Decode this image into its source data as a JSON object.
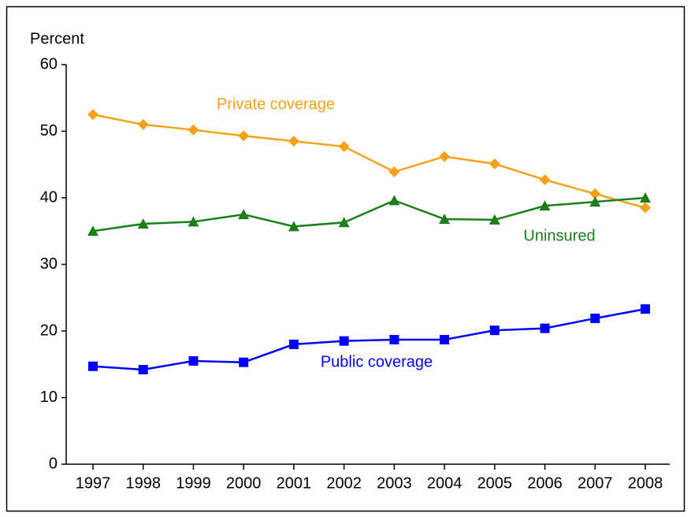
{
  "chart_data": {
    "type": "line",
    "y_axis_label": "Percent",
    "x": [
      "1997",
      "1998",
      "1999",
      "2000",
      "2001",
      "2002",
      "2003",
      "2004",
      "2005",
      "2006",
      "2007",
      "2008"
    ],
    "ylim": [
      0,
      60
    ],
    "yticks": [
      0,
      10,
      20,
      30,
      40,
      50,
      60
    ],
    "series": [
      {
        "name": "Private coverage",
        "color": "#f7a11a",
        "marker": "diamond",
        "values": [
          52.5,
          51.0,
          50.2,
          49.3,
          48.5,
          47.7,
          43.9,
          46.2,
          45.1,
          42.7,
          40.6,
          38.5
        ]
      },
      {
        "name": "Uninsured",
        "color": "#1a7f1a",
        "marker": "triangle",
        "values": [
          35.0,
          36.1,
          36.4,
          37.5,
          35.7,
          36.3,
          39.6,
          36.8,
          36.7,
          38.8,
          39.4,
          40.0
        ]
      },
      {
        "name": "Public coverage",
        "color": "#0000ff",
        "marker": "square",
        "values": [
          14.7,
          14.2,
          15.5,
          15.3,
          18.0,
          18.5,
          18.7,
          18.7,
          20.1,
          20.4,
          21.9,
          23.3
        ]
      }
    ]
  }
}
